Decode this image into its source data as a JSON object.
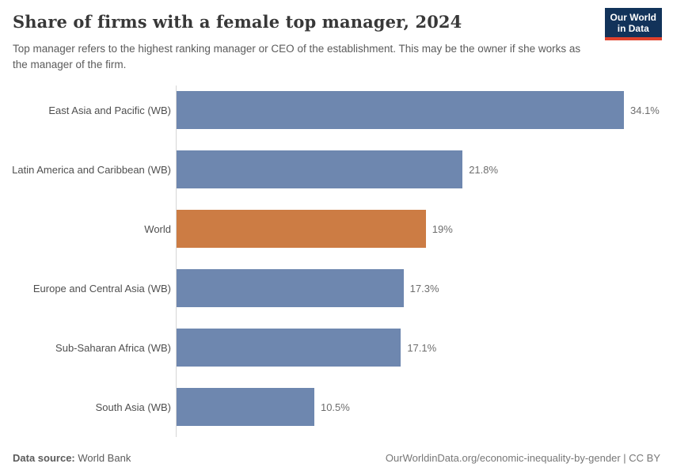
{
  "header": {
    "title": "Share of firms with a female top manager, 2024",
    "subtitle": "Top manager refers to the highest ranking manager or CEO of the establishment. This may be the owner if she works as the manager of the firm.",
    "logo": {
      "line1": "Our World",
      "line2": "in Data"
    }
  },
  "chart_data": {
    "type": "bar",
    "orientation": "horizontal",
    "title": "Share of firms with a female top manager, 2024",
    "categories": [
      "East Asia and Pacific (WB)",
      "Latin America and Caribbean (WB)",
      "World",
      "Europe and Central Asia (WB)",
      "Sub-Saharan Africa (WB)",
      "South Asia (WB)"
    ],
    "values": [
      34.1,
      21.8,
      19,
      17.3,
      17.1,
      10.5
    ],
    "value_labels": [
      "34.1%",
      "21.8%",
      "19%",
      "17.3%",
      "17.1%",
      "10.5%"
    ],
    "bar_colors": [
      "#6e87af",
      "#6e87af",
      "#cc7c44",
      "#6e87af",
      "#6e87af",
      "#6e87af"
    ],
    "highlight_category": "World",
    "xlim": [
      0,
      34.1
    ],
    "xlabel": "",
    "ylabel": "",
    "grid": false,
    "legend": false
  },
  "colors": {
    "bar_default": "#6e87af",
    "bar_highlight": "#cc7c44",
    "axis_line": "#d6d6d6",
    "logo_bg": "#12335a",
    "logo_accent": "#e0422c"
  },
  "footer": {
    "datasource_label": "Data source:",
    "datasource_value": " World Bank",
    "attribution": "OurWorldinData.org/economic-inequality-by-gender | CC BY"
  }
}
